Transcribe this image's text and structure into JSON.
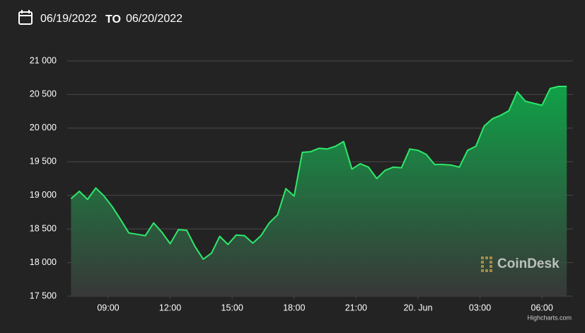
{
  "header": {
    "start": "06/19/2022",
    "to": "TO",
    "end": "06/20/2022"
  },
  "chart_data": {
    "type": "area",
    "color": "#2ee86a",
    "x": [
      7.2,
      7.6,
      8.0,
      8.4,
      8.8,
      9.2,
      9.6,
      10.0,
      10.4,
      10.8,
      11.2,
      11.6,
      12.0,
      12.4,
      12.8,
      13.2,
      13.6,
      14.0,
      14.4,
      14.8,
      15.2,
      15.6,
      16.0,
      16.4,
      16.8,
      17.2,
      17.6,
      18.0,
      18.4,
      18.8,
      19.2,
      19.6,
      20.0,
      20.4,
      20.8,
      21.2,
      21.6,
      22.0,
      22.4,
      22.8,
      23.2,
      23.6,
      24.0,
      24.4,
      24.8,
      25.2,
      25.6,
      26.0,
      26.4,
      26.8,
      27.2,
      27.6,
      28.0,
      28.4,
      28.8,
      29.2,
      29.6,
      30.0,
      30.4,
      30.8,
      31.2
    ],
    "values": [
      18950,
      19060,
      18940,
      19110,
      18990,
      18830,
      18640,
      18440,
      18420,
      18400,
      18590,
      18450,
      18280,
      18490,
      18480,
      18240,
      18050,
      18140,
      18390,
      18270,
      18410,
      18400,
      18290,
      18400,
      18590,
      18710,
      19100,
      18990,
      19640,
      19650,
      19700,
      19690,
      19730,
      19800,
      19390,
      19470,
      19420,
      19250,
      19370,
      19420,
      19410,
      19690,
      19670,
      19610,
      19460,
      19460,
      19450,
      19420,
      19670,
      19730,
      20030,
      20140,
      20190,
      20260,
      20540,
      20400,
      20370,
      20340,
      20590,
      20620,
      20620
    ],
    "xlim": [
      7.2,
      31.2
    ],
    "xticks": [
      {
        "value": 9,
        "label": "09:00"
      },
      {
        "value": 12,
        "label": "12:00"
      },
      {
        "value": 15,
        "label": "15:00"
      },
      {
        "value": 18,
        "label": "18:00"
      },
      {
        "value": 21,
        "label": "21:00"
      },
      {
        "value": 24,
        "label": "20. Jun"
      },
      {
        "value": 27,
        "label": "03:00"
      },
      {
        "value": 30,
        "label": "06:00"
      }
    ],
    "ylim": [
      17500,
      21000
    ],
    "yticks": [
      {
        "value": 17500,
        "label": "17 500"
      },
      {
        "value": 18000,
        "label": "18 000"
      },
      {
        "value": 18500,
        "label": "18 500"
      },
      {
        "value": 19000,
        "label": "19 000"
      },
      {
        "value": 19500,
        "label": "19 500"
      },
      {
        "value": 20000,
        "label": "20 000"
      },
      {
        "value": 20500,
        "label": "20 500"
      },
      {
        "value": 21000,
        "label": "21 000"
      }
    ],
    "grid": true,
    "watermark": "CoinDesk",
    "credit": "Highcharts.com"
  }
}
